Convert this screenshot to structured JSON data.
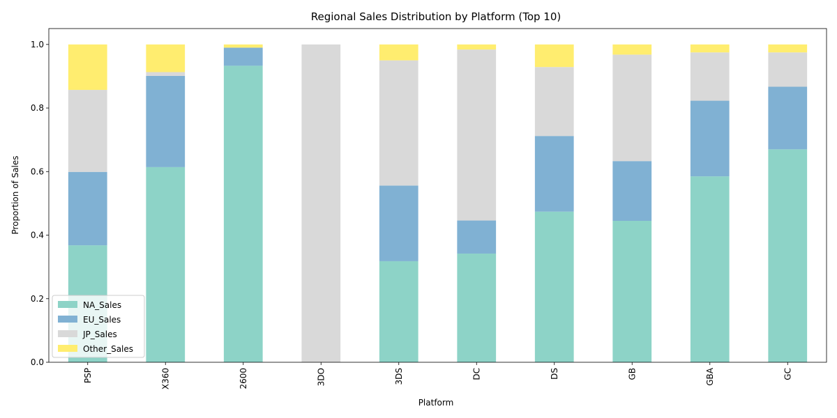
{
  "chart_data": {
    "type": "bar",
    "stacked": true,
    "title": "Regional Sales Distribution by Platform (Top 10)",
    "xlabel": "Platform",
    "ylabel": "Proportion of Sales",
    "ylim": [
      0,
      1.05
    ],
    "yticks": [
      "0.0",
      "0.2",
      "0.4",
      "0.6",
      "0.8",
      "1.0"
    ],
    "legend_position": "bottom-left",
    "grid": false,
    "categories": [
      "PSP",
      "X360",
      "2600",
      "3DO",
      "3DS",
      "DC",
      "DS",
      "GB",
      "GBA",
      "GC"
    ],
    "series": [
      {
        "name": "NA_Sales",
        "color": "#8dd3c7",
        "values": [
          0.368,
          0.614,
          0.933,
          0.0,
          0.318,
          0.342,
          0.474,
          0.445,
          0.585,
          0.67
        ]
      },
      {
        "name": "EU_Sales",
        "color": "#80b1d3",
        "values": [
          0.231,
          0.287,
          0.057,
          0.0,
          0.238,
          0.104,
          0.238,
          0.188,
          0.238,
          0.197
        ]
      },
      {
        "name": "JP_Sales",
        "color": "#d9d9d9",
        "values": [
          0.258,
          0.012,
          0.0,
          1.0,
          0.394,
          0.538,
          0.217,
          0.335,
          0.152,
          0.108
        ]
      },
      {
        "name": "Other_Sales",
        "color": "#ffed6f",
        "values": [
          0.143,
          0.087,
          0.01,
          0.0,
          0.05,
          0.016,
          0.071,
          0.032,
          0.025,
          0.025
        ]
      }
    ]
  }
}
